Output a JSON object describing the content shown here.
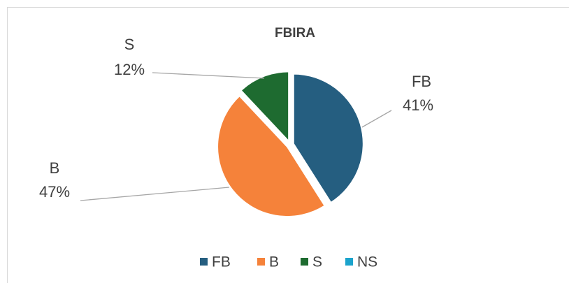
{
  "chart_data": {
    "type": "pie",
    "title": "FBIRA",
    "categories": [
      "FB",
      "B",
      "S",
      "NS"
    ],
    "values": [
      41,
      47,
      12,
      0
    ],
    "value_labels": [
      "41%",
      "47%",
      "12%",
      null
    ],
    "colors": [
      "#255e80",
      "#f5823a",
      "#1e6b30",
      "#1ba3cc"
    ],
    "legend": "bottom"
  }
}
